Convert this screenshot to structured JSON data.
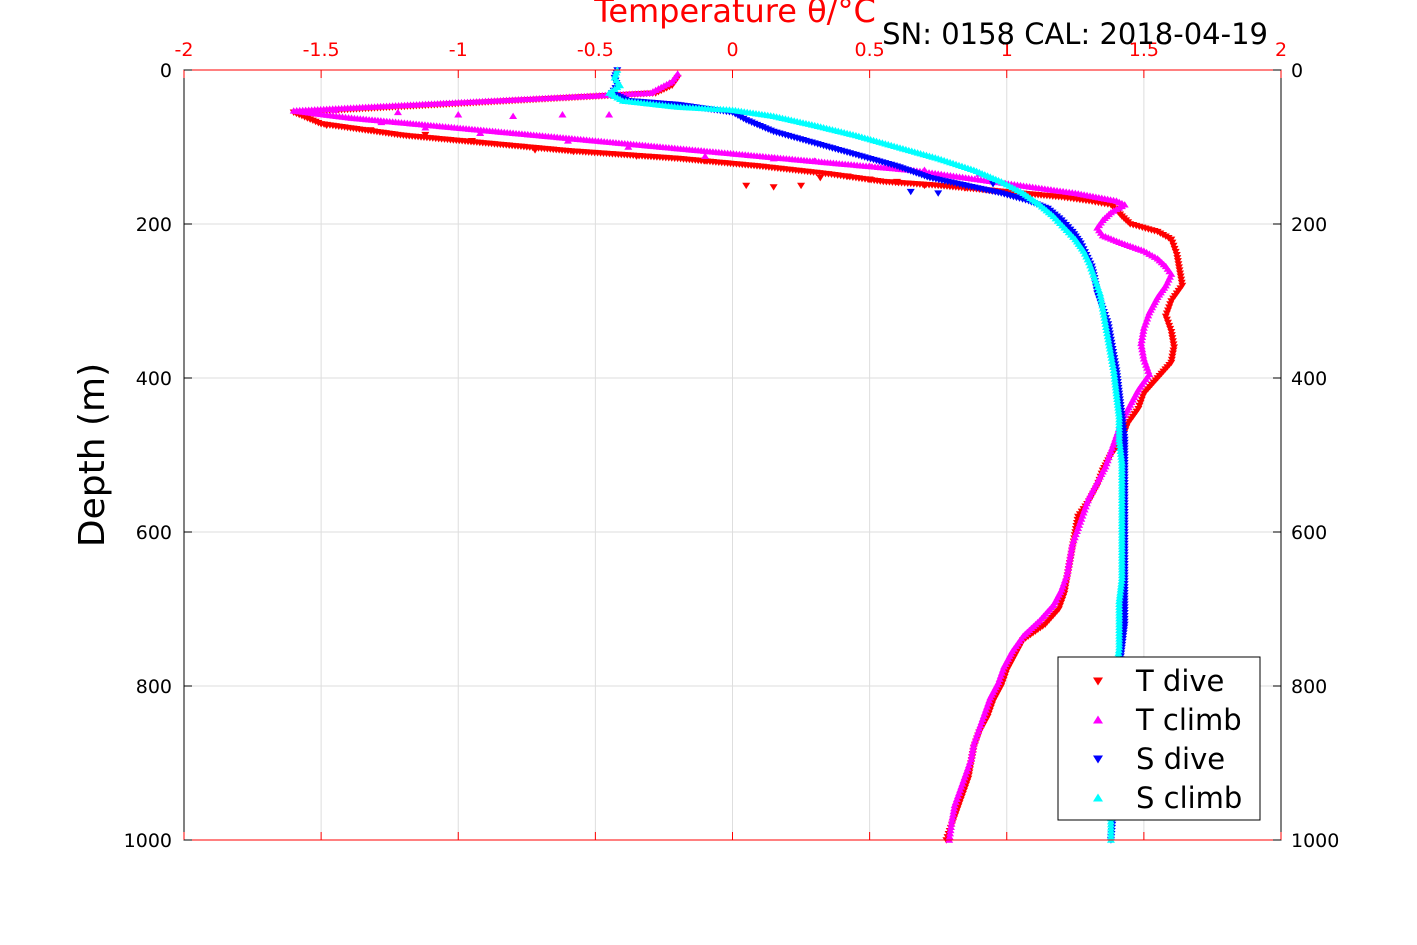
{
  "chart_data": {
    "type": "scatter",
    "title": "Temperature θ/°C",
    "annotation": "SN: 0158  CAL: 2018-04-19",
    "xlabel": "Temperature θ/°C",
    "ylabel": "Depth (m)",
    "xlim": [
      -2,
      2
    ],
    "ylim": [
      0,
      1000
    ],
    "y_reversed": true,
    "x_axis_position": "top",
    "xticks": [
      "-2",
      "-1.5",
      "-1",
      "-0.5",
      "0",
      "0.5",
      "1",
      "1.5",
      "2"
    ],
    "yticks": [
      "0",
      "200",
      "400",
      "600",
      "800",
      "1000"
    ],
    "grid": true,
    "legend": "bottom-right",
    "colors": {
      "T dive": "#ff0000",
      "T climb": "#ff00ff",
      "S dive": "#0000ff",
      "S climb": "#00ffff",
      "axis_top": "#ff0000"
    },
    "series": [
      {
        "name": "T dive",
        "marker": "triangle-down",
        "color": "#ff0000",
        "profile": [
          [
            -0.2,
            10
          ],
          [
            -0.22,
            20
          ],
          [
            -0.28,
            30
          ],
          [
            -1.6,
            55
          ],
          [
            -1.5,
            70
          ],
          [
            -1.2,
            85
          ],
          [
            -0.9,
            95
          ],
          [
            -0.6,
            105
          ],
          [
            -0.2,
            115
          ],
          [
            0.1,
            125
          ],
          [
            0.35,
            135
          ],
          [
            0.55,
            145
          ],
          [
            0.75,
            150
          ],
          [
            0.9,
            155
          ],
          [
            1.05,
            160
          ],
          [
            1.2,
            165
          ],
          [
            1.3,
            170
          ],
          [
            1.38,
            175
          ],
          [
            1.4,
            182
          ],
          [
            1.42,
            190
          ],
          [
            1.45,
            200
          ],
          [
            1.55,
            210
          ],
          [
            1.6,
            220
          ],
          [
            1.62,
            240
          ],
          [
            1.63,
            260
          ],
          [
            1.64,
            280
          ],
          [
            1.6,
            300
          ],
          [
            1.58,
            320
          ],
          [
            1.6,
            340
          ],
          [
            1.61,
            360
          ],
          [
            1.6,
            380
          ],
          [
            1.55,
            400
          ],
          [
            1.5,
            420
          ],
          [
            1.48,
            440
          ],
          [
            1.44,
            460
          ],
          [
            1.42,
            480
          ],
          [
            1.38,
            500
          ],
          [
            1.35,
            520
          ],
          [
            1.33,
            540
          ],
          [
            1.3,
            560
          ],
          [
            1.26,
            580
          ],
          [
            1.25,
            600
          ],
          [
            1.24,
            620
          ],
          [
            1.23,
            640
          ],
          [
            1.22,
            660
          ],
          [
            1.21,
            680
          ],
          [
            1.19,
            700
          ],
          [
            1.14,
            720
          ],
          [
            1.06,
            740
          ],
          [
            1.03,
            760
          ],
          [
            1.0,
            780
          ],
          [
            0.98,
            800
          ],
          [
            0.95,
            820
          ],
          [
            0.93,
            840
          ],
          [
            0.9,
            860
          ],
          [
            0.88,
            880
          ],
          [
            0.87,
            900
          ],
          [
            0.86,
            920
          ],
          [
            0.84,
            940
          ],
          [
            0.82,
            960
          ],
          [
            0.8,
            980
          ],
          [
            0.78,
            1000
          ]
        ],
        "scatter": [
          [
            -1.48,
            72
          ],
          [
            -1.32,
            78
          ],
          [
            -1.12,
            84
          ],
          [
            -0.95,
            92
          ],
          [
            -0.72,
            104
          ],
          [
            -0.58,
            106
          ],
          [
            -0.35,
            112
          ],
          [
            -0.1,
            118
          ],
          [
            0.05,
            150
          ],
          [
            0.15,
            152
          ],
          [
            0.25,
            150
          ],
          [
            0.32,
            140
          ],
          [
            0.42,
            138
          ],
          [
            0.5,
            142
          ],
          [
            0.6,
            145
          ],
          [
            0.7,
            150
          ],
          [
            0.85,
            153
          ]
        ]
      },
      {
        "name": "T climb",
        "marker": "triangle-up",
        "color": "#ff00ff",
        "profile": [
          [
            -0.2,
            5
          ],
          [
            -0.22,
            15
          ],
          [
            -0.3,
            30
          ],
          [
            -1.6,
            53
          ],
          [
            -1.4,
            62
          ],
          [
            -1.1,
            72
          ],
          [
            -0.8,
            82
          ],
          [
            -0.5,
            92
          ],
          [
            -0.2,
            102
          ],
          [
            0.1,
            112
          ],
          [
            0.4,
            122
          ],
          [
            0.65,
            130
          ],
          [
            0.85,
            140
          ],
          [
            1.05,
            150
          ],
          [
            1.25,
            160
          ],
          [
            1.4,
            170
          ],
          [
            1.43,
            175
          ],
          [
            1.38,
            185
          ],
          [
            1.35,
            195
          ],
          [
            1.33,
            205
          ],
          [
            1.35,
            215
          ],
          [
            1.42,
            225
          ],
          [
            1.5,
            235
          ],
          [
            1.55,
            245
          ],
          [
            1.58,
            255
          ],
          [
            1.6,
            265
          ],
          [
            1.58,
            280
          ],
          [
            1.55,
            295
          ],
          [
            1.52,
            315
          ],
          [
            1.5,
            335
          ],
          [
            1.49,
            355
          ],
          [
            1.5,
            375
          ],
          [
            1.52,
            395
          ],
          [
            1.48,
            415
          ],
          [
            1.45,
            435
          ],
          [
            1.42,
            455
          ],
          [
            1.4,
            475
          ],
          [
            1.38,
            495
          ],
          [
            1.36,
            515
          ],
          [
            1.33,
            535
          ],
          [
            1.3,
            555
          ],
          [
            1.28,
            575
          ],
          [
            1.26,
            595
          ],
          [
            1.24,
            615
          ],
          [
            1.23,
            635
          ],
          [
            1.22,
            655
          ],
          [
            1.2,
            675
          ],
          [
            1.17,
            695
          ],
          [
            1.12,
            715
          ],
          [
            1.06,
            735
          ],
          [
            1.02,
            755
          ],
          [
            0.99,
            775
          ],
          [
            0.97,
            795
          ],
          [
            0.94,
            815
          ],
          [
            0.92,
            835
          ],
          [
            0.9,
            855
          ],
          [
            0.88,
            875
          ],
          [
            0.87,
            895
          ],
          [
            0.85,
            915
          ],
          [
            0.83,
            935
          ],
          [
            0.81,
            955
          ],
          [
            0.8,
            975
          ],
          [
            0.79,
            1000
          ]
        ],
        "scatter": [
          [
            -1.45,
            52
          ],
          [
            -1.22,
            55
          ],
          [
            -1.0,
            58
          ],
          [
            -0.8,
            60
          ],
          [
            -0.62,
            58
          ],
          [
            -0.45,
            58
          ],
          [
            -1.28,
            68
          ],
          [
            -1.12,
            75
          ],
          [
            -0.92,
            82
          ],
          [
            -0.6,
            92
          ],
          [
            -0.38,
            100
          ],
          [
            -0.1,
            112
          ],
          [
            0.15,
            115
          ],
          [
            0.3,
            118
          ],
          [
            0.5,
            125
          ],
          [
            0.7,
            130
          ],
          [
            0.9,
            135
          ]
        ]
      },
      {
        "name": "S dive",
        "marker": "triangle-down",
        "color": "#0000ff",
        "profile": [
          [
            -0.42,
            0
          ],
          [
            -0.43,
            10
          ],
          [
            -0.42,
            20
          ],
          [
            -0.44,
            30
          ],
          [
            -0.38,
            40
          ],
          [
            -0.2,
            45
          ],
          [
            0.0,
            55
          ],
          [
            0.05,
            65
          ],
          [
            0.15,
            80
          ],
          [
            0.3,
            95
          ],
          [
            0.45,
            110
          ],
          [
            0.6,
            125
          ],
          [
            0.72,
            140
          ],
          [
            0.85,
            150
          ],
          [
            0.98,
            160
          ],
          [
            1.08,
            170
          ],
          [
            1.15,
            180
          ],
          [
            1.2,
            195
          ],
          [
            1.24,
            210
          ],
          [
            1.27,
            225
          ],
          [
            1.29,
            240
          ],
          [
            1.31,
            255
          ],
          [
            1.32,
            270
          ],
          [
            1.33,
            290
          ],
          [
            1.35,
            310
          ],
          [
            1.37,
            330
          ],
          [
            1.38,
            350
          ],
          [
            1.39,
            370
          ],
          [
            1.4,
            390
          ],
          [
            1.41,
            420
          ],
          [
            1.42,
            450
          ],
          [
            1.43,
            480
          ],
          [
            1.43,
            510
          ],
          [
            1.43,
            540
          ],
          [
            1.43,
            570
          ],
          [
            1.43,
            600
          ],
          [
            1.43,
            630
          ],
          [
            1.43,
            660
          ],
          [
            1.43,
            690
          ],
          [
            1.43,
            720
          ],
          [
            1.42,
            750
          ],
          [
            1.41,
            780
          ],
          [
            1.41,
            810
          ],
          [
            1.4,
            840
          ],
          [
            1.4,
            870
          ],
          [
            1.4,
            900
          ],
          [
            1.39,
            930
          ],
          [
            1.39,
            960
          ],
          [
            1.38,
            1000
          ]
        ],
        "scatter": [
          [
            0.65,
            158
          ],
          [
            0.75,
            160
          ],
          [
            0.85,
            150
          ],
          [
            0.95,
            148
          ]
        ]
      },
      {
        "name": "S climb",
        "marker": "triangle-up",
        "color": "#00ffff",
        "profile": [
          [
            -0.42,
            0
          ],
          [
            -0.43,
            10
          ],
          [
            -0.41,
            20
          ],
          [
            -0.45,
            30
          ],
          [
            -0.4,
            40
          ],
          [
            -0.2,
            48
          ],
          [
            0.0,
            52
          ],
          [
            0.15,
            60
          ],
          [
            0.3,
            72
          ],
          [
            0.45,
            85
          ],
          [
            0.6,
            100
          ],
          [
            0.75,
            115
          ],
          [
            0.88,
            130
          ],
          [
            0.98,
            145
          ],
          [
            1.06,
            160
          ],
          [
            1.12,
            175
          ],
          [
            1.17,
            190
          ],
          [
            1.21,
            205
          ],
          [
            1.25,
            220
          ],
          [
            1.28,
            235
          ],
          [
            1.3,
            250
          ],
          [
            1.32,
            270
          ],
          [
            1.34,
            290
          ],
          [
            1.35,
            310
          ],
          [
            1.36,
            330
          ],
          [
            1.37,
            350
          ],
          [
            1.38,
            370
          ],
          [
            1.39,
            390
          ],
          [
            1.4,
            420
          ],
          [
            1.41,
            450
          ],
          [
            1.41,
            480
          ],
          [
            1.42,
            510
          ],
          [
            1.42,
            540
          ],
          [
            1.42,
            570
          ],
          [
            1.42,
            600
          ],
          [
            1.42,
            630
          ],
          [
            1.42,
            660
          ],
          [
            1.41,
            690
          ],
          [
            1.41,
            720
          ],
          [
            1.41,
            750
          ],
          [
            1.4,
            780
          ],
          [
            1.4,
            810
          ],
          [
            1.4,
            840
          ],
          [
            1.39,
            870
          ],
          [
            1.39,
            900
          ],
          [
            1.39,
            930
          ],
          [
            1.38,
            960
          ],
          [
            1.38,
            1000
          ]
        ],
        "scatter": []
      }
    ]
  }
}
